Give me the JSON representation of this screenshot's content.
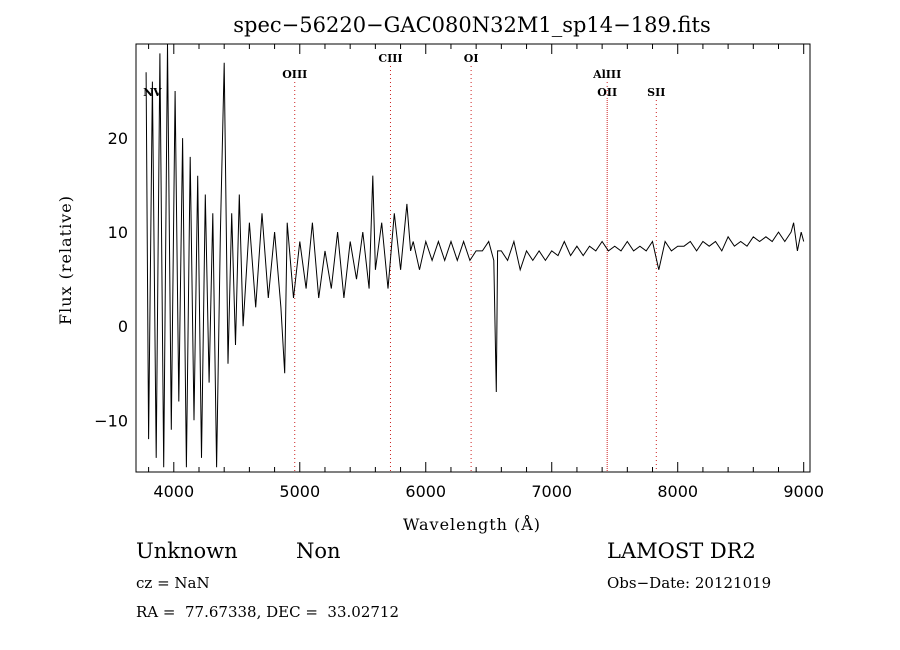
{
  "chart_data": {
    "type": "line",
    "title": "spec−56220−GAC080N32M1_sp14−189.fits",
    "xlabel": "Wavelength (Å)",
    "ylabel": "Flux (relative)",
    "xlim": [
      3700,
      9050
    ],
    "ylim": [
      -15.5,
      30
    ],
    "xticks": [
      4000,
      5000,
      6000,
      7000,
      8000,
      9000
    ],
    "xtick_labels": [
      "4000",
      "5000",
      "6000",
      "7000",
      "8000",
      "9000"
    ],
    "yticks": [
      -10,
      0,
      10,
      20
    ],
    "ytick_labels": [
      "−10",
      "0",
      "10",
      "20"
    ],
    "grid": false,
    "series": [
      {
        "color": "#000000",
        "x": [
          3780,
          3800,
          3830,
          3860,
          3890,
          3920,
          3950,
          3980,
          4010,
          4040,
          4070,
          4100,
          4130,
          4160,
          4190,
          4220,
          4250,
          4280,
          4310,
          4340,
          4370,
          4400,
          4430,
          4460,
          4490,
          4520,
          4550,
          4600,
          4650,
          4700,
          4750,
          4800,
          4850,
          4880,
          4900,
          4950,
          5000,
          5050,
          5100,
          5150,
          5200,
          5250,
          5300,
          5350,
          5400,
          5450,
          5500,
          5550,
          5580,
          5600,
          5650,
          5700,
          5750,
          5800,
          5850,
          5880,
          5900,
          5950,
          6000,
          6050,
          6100,
          6150,
          6200,
          6250,
          6300,
          6350,
          6400,
          6450,
          6500,
          6540,
          6560,
          6570,
          6600,
          6650,
          6700,
          6750,
          6800,
          6850,
          6900,
          6950,
          7000,
          7050,
          7100,
          7150,
          7200,
          7250,
          7300,
          7350,
          7400,
          7450,
          7500,
          7550,
          7600,
          7650,
          7700,
          7750,
          7800,
          7850,
          7900,
          7950,
          8000,
          8050,
          8100,
          8150,
          8200,
          8250,
          8300,
          8350,
          8400,
          8450,
          8500,
          8550,
          8600,
          8650,
          8700,
          8750,
          8800,
          8850,
          8900,
          8920,
          8950,
          8980,
          9000
        ],
        "y": [
          27,
          -12,
          26,
          -14,
          29,
          -15,
          30,
          -11,
          25,
          -8,
          20,
          -15,
          18,
          -10,
          16,
          -14,
          14,
          -6,
          12,
          -15,
          10,
          28,
          -4,
          12,
          -2,
          14,
          0,
          11,
          2,
          12,
          3,
          10,
          2,
          -5,
          11,
          3,
          9,
          4,
          11,
          3,
          8,
          4,
          10,
          3,
          9,
          5,
          10,
          4,
          16,
          6,
          11,
          4,
          12,
          6,
          13,
          8,
          9,
          6,
          9,
          7,
          9,
          7,
          9,
          7,
          9,
          7,
          8,
          8,
          9,
          7,
          -7,
          8,
          8,
          7,
          9,
          6,
          8,
          7,
          8,
          7,
          8,
          7.5,
          9,
          7.5,
          8.5,
          7.5,
          8.5,
          8,
          9,
          8,
          8.5,
          8,
          9,
          8,
          8.5,
          8,
          9,
          6,
          9,
          8,
          8.5,
          8.5,
          9,
          8,
          9,
          8.5,
          9,
          8,
          9.5,
          8.5,
          9,
          8.5,
          9.5,
          9,
          9.5,
          9,
          10,
          9,
          10,
          11,
          8,
          10,
          9
        ]
      }
    ],
    "annotations": [
      {
        "label": "NV",
        "x": 3830,
        "row": 1,
        "line": false
      },
      {
        "label": "OIII",
        "x": 4960,
        "row": 0,
        "line": true
      },
      {
        "label": "CIII",
        "x": 5720,
        "row": -1,
        "line": true
      },
      {
        "label": "OI",
        "x": 6360,
        "row": -1,
        "line": true
      },
      {
        "label": "AlIII",
        "x": 7440,
        "row": 0,
        "line": true
      },
      {
        "label": "OII",
        "x": 7440,
        "row": 1,
        "line": true
      },
      {
        "label": "SII",
        "x": 7830,
        "row": 1,
        "line": true
      }
    ]
  },
  "info": {
    "object_class": "Unknown",
    "object_subclass": "Non",
    "survey": "LAMOST DR2",
    "cz": "cz = NaN",
    "obs_date": "Obs−Date: 20121019",
    "coords": "RA =  77.67338, DEC =  33.02712"
  },
  "colors": {
    "axis": "#000000",
    "spectrum": "#000000",
    "line_marker": "#cc2222"
  }
}
